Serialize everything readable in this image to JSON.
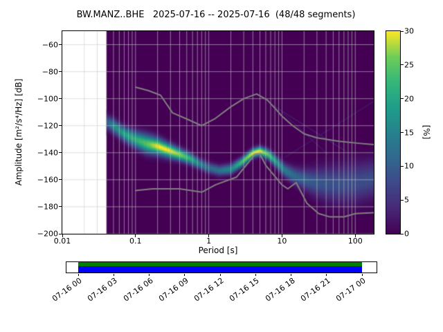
{
  "chart_data": {
    "type": "heatmap",
    "title": "BW.MANZ..BHE   2025-07-16 -- 2025-07-16  (48/48 segments)",
    "x_axis": {
      "label": "Period [s]",
      "scale": "log",
      "min": 0.01,
      "max": 179,
      "tick_values": [
        0.01,
        0.1,
        1,
        10,
        100
      ],
      "tick_labels": [
        "0.01",
        "0.1",
        "1",
        "10",
        "100"
      ]
    },
    "y_axis": {
      "label": "Amplitude [m²/s⁴/Hz] [dB]",
      "min": -200,
      "max": -50,
      "tick_values": [
        -60,
        -80,
        -100,
        -120,
        -140,
        -160,
        -180,
        -200
      ],
      "tick_labels": [
        "−60",
        "−80",
        "−100",
        "−120",
        "−140",
        "−160",
        "−180",
        "−200"
      ]
    },
    "colorbar": {
      "label": "[%]",
      "colormap": "viridis",
      "min": 0,
      "max": 30,
      "tick_values": [
        0,
        5,
        10,
        15,
        20,
        25,
        30
      ],
      "tick_labels": [
        "0",
        "5",
        "10",
        "15",
        "20",
        "25",
        "30"
      ]
    },
    "background_color": "#440154",
    "data_period_range": [
      0.04,
      179
    ],
    "histogram_ridge": {
      "comment": "mode of PSD probability density vs period, with gaussian spread and peak probability in percent",
      "periods": [
        0.04,
        0.05,
        0.07,
        0.1,
        0.14,
        0.2,
        0.28,
        0.4,
        0.55,
        0.75,
        1.0,
        1.4,
        2.0,
        2.8,
        4.0,
        5.0,
        6.5,
        8.5,
        11,
        15,
        20,
        28,
        40,
        60,
        100,
        179
      ],
      "mode_db": [
        -117,
        -120,
        -126,
        -130,
        -133,
        -135,
        -138,
        -141,
        -144,
        -148,
        -151,
        -153,
        -152,
        -147,
        -140,
        -138.5,
        -141,
        -147,
        -153,
        -157,
        -159.5,
        -161.5,
        -162.5,
        -163,
        -162,
        -159
      ],
      "spread_db": [
        3.5,
        3.5,
        3.5,
        4,
        4.5,
        4,
        3.5,
        3,
        2.8,
        2.5,
        2.5,
        2.5,
        2.5,
        2.3,
        2.2,
        2.2,
        2.4,
        2.8,
        3.2,
        4,
        5,
        6.5,
        8,
        9,
        9.5,
        9
      ],
      "peak_pct": [
        10,
        16,
        20,
        22,
        25,
        30,
        30,
        27,
        22,
        16,
        13,
        14,
        17,
        24,
        30,
        30,
        25,
        19,
        15,
        12,
        10.5,
        9.5,
        9,
        8.5,
        8,
        8
      ]
    },
    "artifacts": [
      {
        "from_period": 7,
        "from_db": -104,
        "to_period": 179,
        "to_db": -152,
        "pct": 2.5
      },
      {
        "from_period": 7,
        "from_db": -150,
        "to_period": 179,
        "to_db": -102,
        "pct": 2
      },
      {
        "from_period": 10,
        "from_db": -110,
        "to_period": 100,
        "to_db": -160,
        "pct": 2
      }
    ],
    "noise_models": {
      "color": "#808080",
      "nhnm": {
        "periods": [
          0.1,
          0.15,
          0.22,
          0.32,
          0.5,
          0.8,
          1.2,
          2.0,
          3.0,
          4.5,
          6.3,
          8,
          10,
          14,
          20,
          30,
          60,
          110,
          179
        ],
        "db": [
          -91.5,
          -94,
          -97.5,
          -110.5,
          -115,
          -120,
          -115,
          -106,
          -100,
          -96.5,
          -101,
          -107,
          -113,
          -120,
          -126,
          -129,
          -131.5,
          -133,
          -134
        ]
      },
      "nlnm": {
        "periods": [
          0.1,
          0.17,
          0.4,
          0.8,
          1.24,
          2.4,
          4.3,
          5.0,
          6.0,
          10,
          12,
          15.6,
          21.9,
          31.6,
          45,
          70,
          101,
          179
        ],
        "db": [
          -168.0,
          -166.7,
          -166.7,
          -169.2,
          -163.7,
          -158.0,
          -141.1,
          -141.1,
          -149.4,
          -163.8,
          -166.7,
          -162.1,
          -177.5,
          -185.0,
          -187.5,
          -187.5,
          -185.0,
          -184.4
        ]
      }
    }
  },
  "timeline": {
    "labels": [
      "07-16 00",
      "07-16 03",
      "07-16 06",
      "07-16 09",
      "07-16 12",
      "07-16 15",
      "07-16 18",
      "07-16 21",
      "07-17 00"
    ],
    "bar_colors": {
      "green": "#008000",
      "blue": "#0000ff"
    }
  }
}
